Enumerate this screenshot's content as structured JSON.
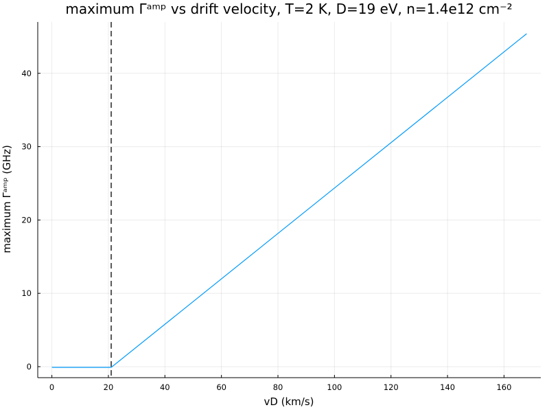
{
  "chart_data": {
    "type": "line",
    "title": "maximum Γᵃᵐᵖ vs drift velocity, T=2 K, D=19 eV, n=1.4e12 cm⁻²",
    "xlabel": "vD (km/s)",
    "ylabel": "maximum Γᵃᵐᵖ (GHz)",
    "xlim": [
      -5,
      173
    ],
    "ylim": [
      -1.5,
      47
    ],
    "xticks": [
      0,
      20,
      40,
      60,
      80,
      100,
      120,
      140,
      160
    ],
    "yticks": [
      0,
      10,
      20,
      30,
      40
    ],
    "grid": true,
    "legend": "none",
    "series": [
      {
        "color": "#009AFA",
        "x": [
          0,
          21,
          168
        ],
        "y": [
          -0.1,
          -0.1,
          45.4
        ]
      }
    ],
    "vlines": [
      {
        "x": 21,
        "style": "dashed",
        "color": "#555555"
      }
    ]
  }
}
